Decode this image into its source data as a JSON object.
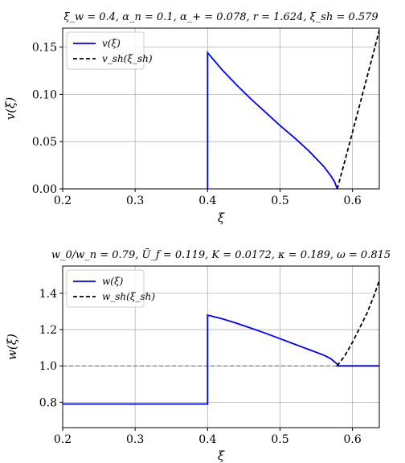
{
  "chart_data": [
    {
      "type": "line",
      "title": "ξ_w = 0.4, α_n = 0.1, α_+ = 0.078, r = 1.624, ξ_sh = 0.579",
      "xlabel": "ξ",
      "ylabel": "v(ξ)",
      "xlim": [
        0.2,
        0.637
      ],
      "ylim": [
        0.0,
        0.17
      ],
      "xticks": [
        0.2,
        0.3,
        0.4,
        0.5,
        0.6
      ],
      "xtick_labels": [
        "0.2",
        "0.3",
        "0.4",
        "0.5",
        "0.6"
      ],
      "yticks": [
        0.0,
        0.05,
        0.1,
        0.15
      ],
      "ytick_labels": [
        "0.00",
        "0.05",
        "0.10",
        "0.15"
      ],
      "grid": true,
      "legend": "top-left",
      "series": [
        {
          "name": "v(ξ)",
          "color": "#0000ff",
          "dash": "solid",
          "x": [
            0.4,
            0.4,
            0.4,
            0.42,
            0.44,
            0.46,
            0.48,
            0.5,
            0.52,
            0.54,
            0.56,
            0.57,
            0.575,
            0.579
          ],
          "y": [
            0.0,
            0.077,
            0.144,
            0.126,
            0.11,
            0.095,
            0.081,
            0.067,
            0.054,
            0.04,
            0.024,
            0.014,
            0.008,
            0.0
          ]
        },
        {
          "name": "v_sh(ξ_sh)",
          "color": "#000000",
          "dash": "dashed",
          "x": [
            0.579,
            0.59,
            0.6,
            0.61,
            0.62,
            0.63,
            0.637
          ],
          "y": [
            0.0,
            0.031,
            0.06,
            0.089,
            0.118,
            0.147,
            0.168
          ]
        }
      ]
    },
    {
      "type": "line",
      "title": "w_0/w_n = 0.79, Ū_f = 0.119, K = 0.0172, κ = 0.189, ω = 0.815",
      "xlabel": "ξ",
      "ylabel": "w(ξ)",
      "xlim": [
        0.2,
        0.637
      ],
      "ylim": [
        0.66,
        1.55
      ],
      "xticks": [
        0.2,
        0.3,
        0.4,
        0.5,
        0.6
      ],
      "xtick_labels": [
        "0.2",
        "0.3",
        "0.4",
        "0.5",
        "0.6"
      ],
      "yticks": [
        0.8,
        1.0,
        1.2,
        1.4
      ],
      "ytick_labels": [
        "0.8",
        "1.0",
        "1.2",
        "1.4"
      ],
      "grid": true,
      "legend": "top-left",
      "reference_line": {
        "y": 1.0,
        "color": "#808080",
        "dash": "dashed"
      },
      "series": [
        {
          "name": "w(ξ)",
          "color": "#0000ff",
          "dash": "solid",
          "x": [
            0.2,
            0.4,
            0.4,
            0.4,
            0.42,
            0.44,
            0.46,
            0.48,
            0.5,
            0.52,
            0.54,
            0.56,
            0.57,
            0.579,
            0.579,
            0.637
          ],
          "y": [
            0.79,
            0.79,
            1.04,
            1.28,
            1.26,
            1.235,
            1.208,
            1.18,
            1.15,
            1.12,
            1.09,
            1.06,
            1.04,
            1.01,
            1.0,
            1.0
          ]
        },
        {
          "name": "w_sh(ξ_sh)",
          "color": "#000000",
          "dash": "dashed",
          "x": [
            0.579,
            0.59,
            0.6,
            0.61,
            0.62,
            0.63,
            0.637
          ],
          "y": [
            1.0,
            1.06,
            1.13,
            1.21,
            1.29,
            1.39,
            1.47
          ]
        }
      ]
    }
  ]
}
